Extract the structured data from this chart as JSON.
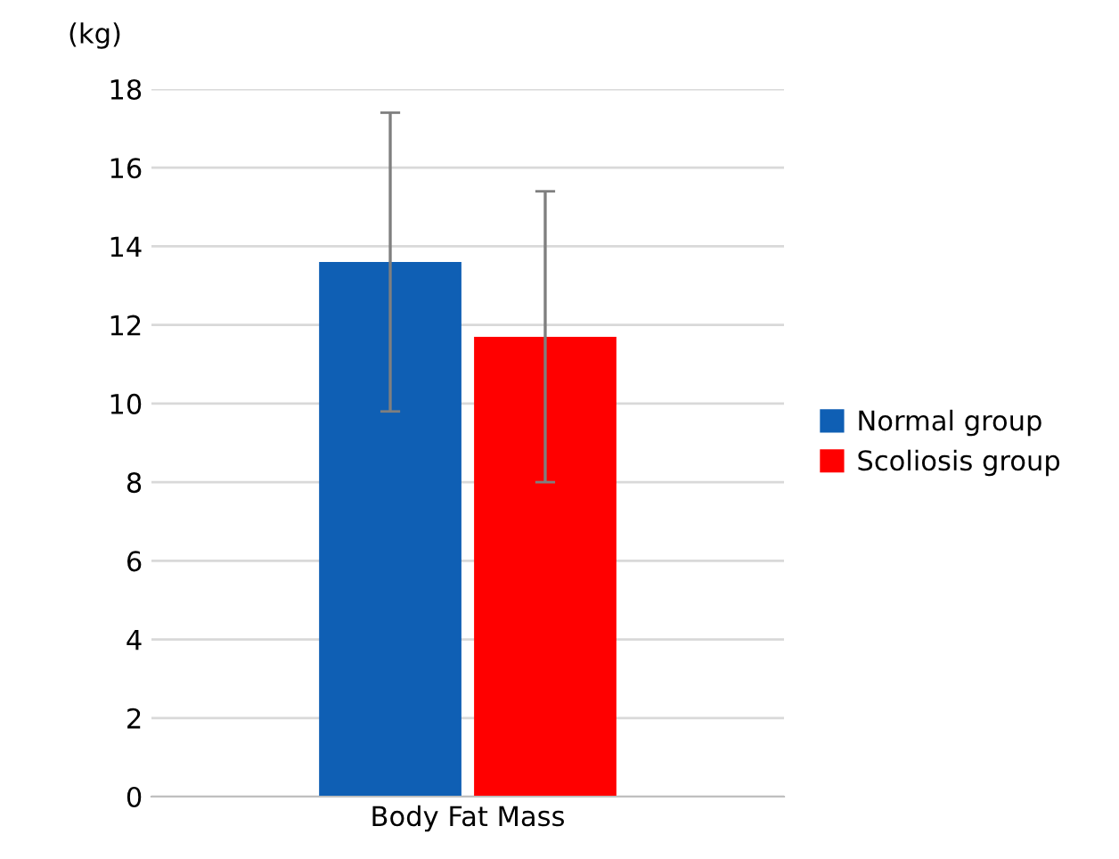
{
  "chart_data": {
    "type": "bar",
    "ylabel": "(kg)",
    "categories": [
      "Body Fat Mass"
    ],
    "series": [
      {
        "name": "Normal group",
        "color": "#0f5fb4",
        "values": [
          13.6
        ],
        "errors": [
          3.8
        ]
      },
      {
        "name": "Scoliosis group",
        "color": "#ff0000",
        "values": [
          11.7
        ],
        "errors": [
          3.7
        ]
      }
    ],
    "ylim": [
      0,
      18
    ],
    "yticks": [
      0,
      2,
      4,
      6,
      8,
      10,
      12,
      14,
      16,
      18
    ],
    "grid": "y",
    "legend": "right"
  }
}
